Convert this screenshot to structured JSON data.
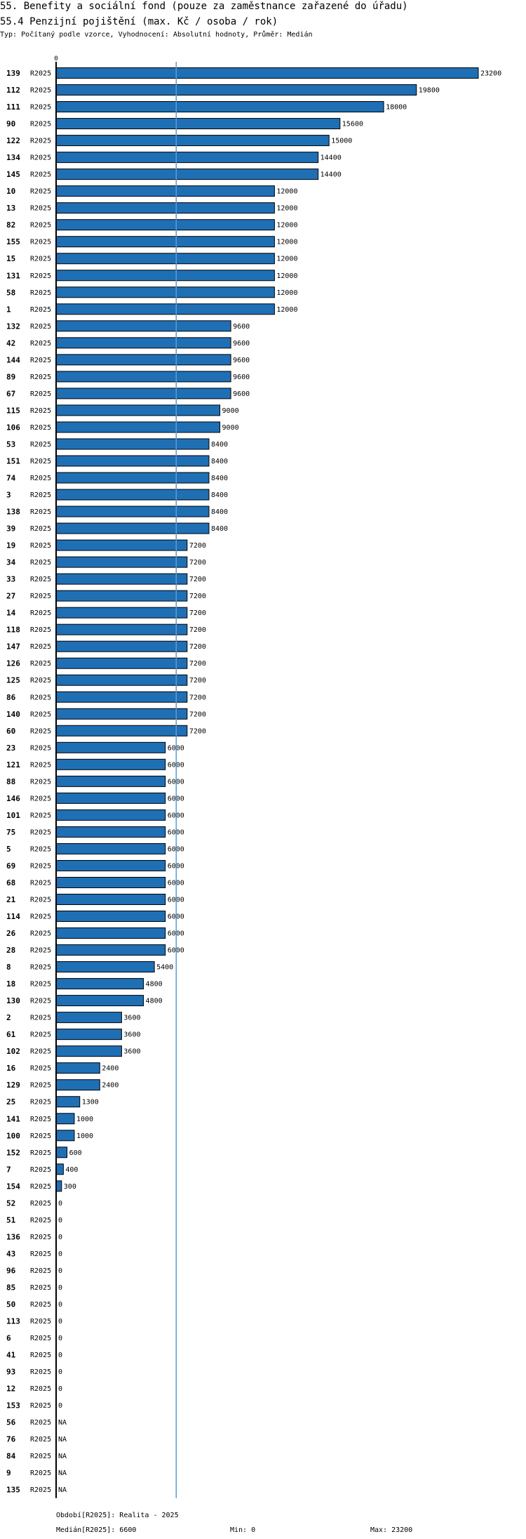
{
  "title_line1": "55. Benefity a sociální fond (pouze za zaměstnance zařazené do úřadu)",
  "title_line2": "55.4 Penzijní pojištění (max. Kč / osoba / rok)",
  "subtitle": "Typ: Počítaný podle vzorce, Vyhodnocení: Absolutní hodnoty, Průměr: Medián",
  "footer": {
    "period": "Období[R2025]: Realita - 2025",
    "median": "Medián[R2025]: 6600",
    "min": "Min: 0",
    "max": "Max: 23200"
  },
  "chart_data": {
    "type": "bar",
    "orientation": "horizontal",
    "series_label": "R2025",
    "x_tick_label": "0",
    "xlim": [
      0,
      23200
    ],
    "median": 6600,
    "categories": [
      "139",
      "112",
      "111",
      "90",
      "122",
      "134",
      "145",
      "10",
      "13",
      "82",
      "155",
      "15",
      "131",
      "58",
      "1",
      "132",
      "42",
      "144",
      "89",
      "67",
      "115",
      "106",
      "53",
      "151",
      "74",
      "3",
      "138",
      "39",
      "19",
      "34",
      "33",
      "27",
      "14",
      "118",
      "147",
      "126",
      "125",
      "86",
      "140",
      "60",
      "23",
      "121",
      "88",
      "146",
      "101",
      "75",
      "5",
      "69",
      "68",
      "21",
      "114",
      "26",
      "28",
      "8",
      "18",
      "130",
      "2",
      "61",
      "102",
      "16",
      "129",
      "25",
      "141",
      "100",
      "152",
      "7",
      "154",
      "52",
      "51",
      "136",
      "43",
      "96",
      "85",
      "50",
      "113",
      "6",
      "41",
      "93",
      "12",
      "153",
      "56",
      "76",
      "84",
      "9",
      "135"
    ],
    "values": [
      23200,
      19800,
      18000,
      15600,
      15000,
      14400,
      14400,
      12000,
      12000,
      12000,
      12000,
      12000,
      12000,
      12000,
      12000,
      9600,
      9600,
      9600,
      9600,
      9600,
      9000,
      9000,
      8400,
      8400,
      8400,
      8400,
      8400,
      8400,
      7200,
      7200,
      7200,
      7200,
      7200,
      7200,
      7200,
      7200,
      7200,
      7200,
      7200,
      7200,
      6000,
      6000,
      6000,
      6000,
      6000,
      6000,
      6000,
      6000,
      6000,
      6000,
      6000,
      6000,
      6000,
      5400,
      4800,
      4800,
      3600,
      3600,
      3600,
      2400,
      2400,
      1300,
      1000,
      1000,
      600,
      400,
      300,
      0,
      0,
      0,
      0,
      0,
      0,
      0,
      0,
      0,
      0,
      0,
      0,
      0,
      null,
      null,
      null,
      null,
      null
    ],
    "value_labels": [
      "23200",
      "19800",
      "18000",
      "15600",
      "15000",
      "14400",
      "14400",
      "12000",
      "12000",
      "12000",
      "12000",
      "12000",
      "12000",
      "12000",
      "12000",
      "9600",
      "9600",
      "9600",
      "9600",
      "9600",
      "9000",
      "9000",
      "8400",
      "8400",
      "8400",
      "8400",
      "8400",
      "8400",
      "7200",
      "7200",
      "7200",
      "7200",
      "7200",
      "7200",
      "7200",
      "7200",
      "7200",
      "7200",
      "7200",
      "7200",
      "6000",
      "6000",
      "6000",
      "6000",
      "6000",
      "6000",
      "6000",
      "6000",
      "6000",
      "6000",
      "6000",
      "6000",
      "6000",
      "5400",
      "4800",
      "4800",
      "3600",
      "3600",
      "3600",
      "2400",
      "2400",
      "1300",
      "1000",
      "1000",
      "600",
      "400",
      "300",
      "0",
      "0",
      "0",
      "0",
      "0",
      "0",
      "0",
      "0",
      "0",
      "0",
      "0",
      "0",
      "0",
      "NA",
      "NA",
      "NA",
      "NA",
      "NA"
    ]
  },
  "colors": {
    "bar_fill": "#1f6fb5",
    "bar_stroke": "#000000",
    "median_line": "#5b9bd5",
    "axis": "#000000"
  }
}
